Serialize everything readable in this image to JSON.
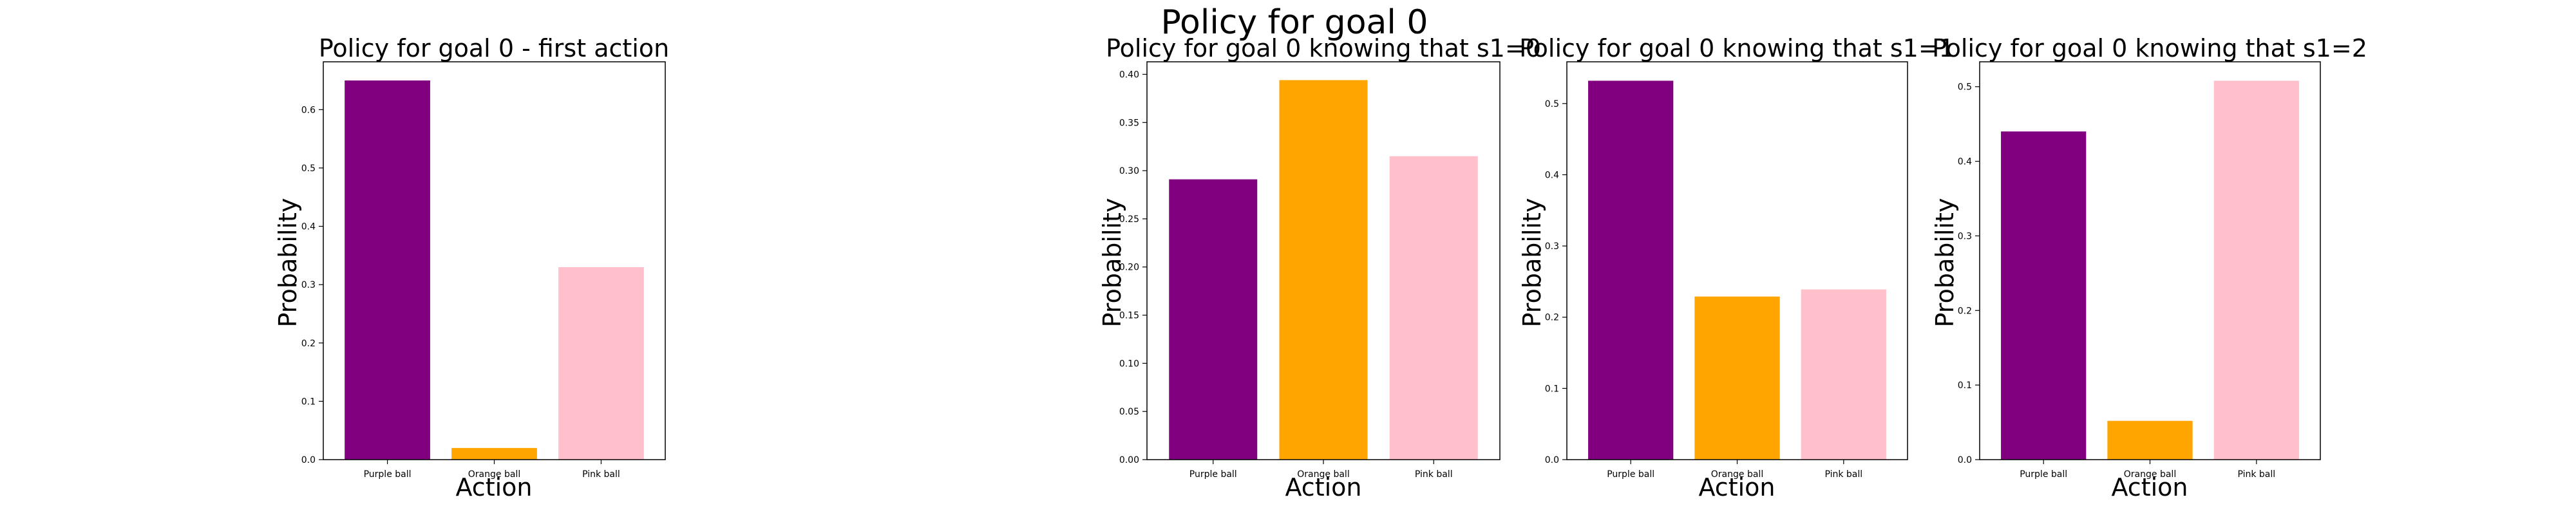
{
  "suptitle": "Policy for goal 0",
  "xlabel": "Action",
  "ylabel": "Probability",
  "chart_data": [
    {
      "type": "bar",
      "title": "Policy for goal 0 - first action",
      "xlabel": "Action",
      "ylabel": "Probability",
      "categories": [
        "Purple ball",
        "Orange ball",
        "Pink ball"
      ],
      "values": [
        0.65,
        0.02,
        0.33
      ],
      "colors": [
        "#800080",
        "#FFA500",
        "#FFC0CB"
      ],
      "ylim": [
        0,
        0.682
      ],
      "yticks": [
        0.0,
        0.1,
        0.2,
        0.3,
        0.4,
        0.5,
        0.6
      ],
      "ytick_labels": [
        "0.0",
        "0.1",
        "0.2",
        "0.3",
        "0.4",
        "0.5",
        "0.6"
      ],
      "grid": false
    },
    {
      "type": "bar",
      "title": "Policy for goal 0 knowing that s1=0",
      "xlabel": "Action",
      "ylabel": "Probability",
      "categories": [
        "Purple ball",
        "Orange ball",
        "Pink ball"
      ],
      "values": [
        0.291,
        0.394,
        0.315
      ],
      "colors": [
        "#800080",
        "#FFA500",
        "#FFC0CB"
      ],
      "ylim": [
        0,
        0.413
      ],
      "yticks": [
        0.0,
        0.05,
        0.1,
        0.15,
        0.2,
        0.25,
        0.3,
        0.35,
        0.4
      ],
      "ytick_labels": [
        "0.00",
        "0.05",
        "0.10",
        "0.15",
        "0.20",
        "0.25",
        "0.30",
        "0.35",
        "0.40"
      ],
      "grid": false
    },
    {
      "type": "bar",
      "title": "Policy for goal 0 knowing that s1=1",
      "xlabel": "Action",
      "ylabel": "Probability",
      "categories": [
        "Purple ball",
        "Orange ball",
        "Pink ball"
      ],
      "values": [
        0.532,
        0.229,
        0.239
      ],
      "colors": [
        "#800080",
        "#FFA500",
        "#FFC0CB"
      ],
      "ylim": [
        0,
        0.5586
      ],
      "yticks": [
        0.0,
        0.1,
        0.2,
        0.3,
        0.4,
        0.5
      ],
      "ytick_labels": [
        "0.0",
        "0.1",
        "0.2",
        "0.3",
        "0.4",
        "0.5"
      ],
      "grid": false
    },
    {
      "type": "bar",
      "title": "Policy for goal 0 knowing that s1=2",
      "xlabel": "Action",
      "ylabel": "Probability",
      "categories": [
        "Purple ball",
        "Orange ball",
        "Pink ball"
      ],
      "values": [
        0.44,
        0.052,
        0.508
      ],
      "colors": [
        "#800080",
        "#FFA500",
        "#FFC0CB"
      ],
      "ylim": [
        0,
        0.5334
      ],
      "yticks": [
        0.0,
        0.1,
        0.2,
        0.3,
        0.4,
        0.5
      ],
      "ytick_labels": [
        "0.0",
        "0.1",
        "0.2",
        "0.3",
        "0.4",
        "0.5"
      ],
      "grid": false
    }
  ]
}
